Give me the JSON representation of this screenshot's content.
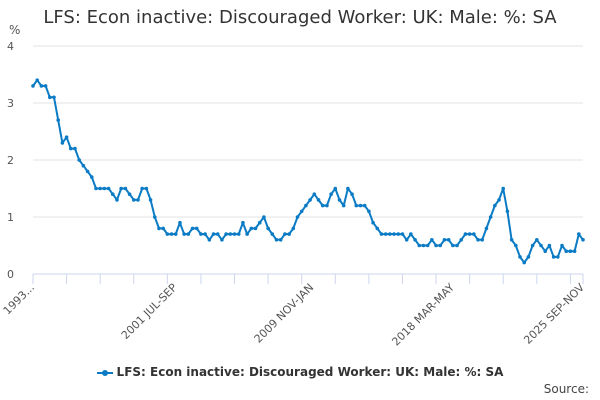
{
  "chart_data": {
    "type": "line",
    "title": "LFS: Econ inactive: Discouraged Worker: UK: Male: %: SA",
    "ylabel": "%",
    "xlabel": "",
    "ylim": [
      0,
      4
    ],
    "yticks": [
      0,
      1,
      2,
      3,
      4
    ],
    "grid": true,
    "x_start": "1993",
    "x_end": "2025 SEP-NOV",
    "x_step": "quarter (approx.)",
    "xtick_labels": [
      {
        "label": "1993...",
        "index": 0
      },
      {
        "label": "2001 JUL-SEP",
        "index": 34
      },
      {
        "label": "2009 NOV-JAN",
        "index": 66.5
      },
      {
        "label": "2018 MAR-MAY",
        "index": 100
      },
      {
        "label": "2025 SEP-NOV",
        "index": 131
      }
    ],
    "series": [
      {
        "name": "LFS: Econ inactive: Discouraged Worker: UK: Male: %: SA",
        "color": "#0a7bc4",
        "values": [
          3.3,
          3.4,
          3.3,
          3.3,
          3.1,
          3.1,
          2.7,
          2.3,
          2.4,
          2.2,
          2.2,
          2.0,
          1.9,
          1.8,
          1.7,
          1.5,
          1.5,
          1.5,
          1.5,
          1.4,
          1.3,
          1.5,
          1.5,
          1.4,
          1.3,
          1.3,
          1.5,
          1.5,
          1.3,
          1.0,
          0.8,
          0.8,
          0.7,
          0.7,
          0.7,
          0.9,
          0.7,
          0.7,
          0.8,
          0.8,
          0.7,
          0.7,
          0.6,
          0.7,
          0.7,
          0.6,
          0.7,
          0.7,
          0.7,
          0.7,
          0.9,
          0.7,
          0.8,
          0.8,
          0.9,
          1.0,
          0.8,
          0.7,
          0.6,
          0.6,
          0.7,
          0.7,
          0.8,
          1.0,
          1.1,
          1.2,
          1.3,
          1.4,
          1.3,
          1.2,
          1.2,
          1.4,
          1.5,
          1.3,
          1.2,
          1.5,
          1.4,
          1.2,
          1.2,
          1.2,
          1.1,
          0.9,
          0.8,
          0.7,
          0.7,
          0.7,
          0.7,
          0.7,
          0.7,
          0.6,
          0.7,
          0.6,
          0.5,
          0.5,
          0.5,
          0.6,
          0.5,
          0.5,
          0.6,
          0.6,
          0.5,
          0.5,
          0.6,
          0.7,
          0.7,
          0.7,
          0.6,
          0.6,
          0.8,
          1.0,
          1.2,
          1.3,
          1.5,
          1.1,
          0.6,
          0.5,
          0.3,
          0.2,
          0.3,
          0.5,
          0.6,
          0.5,
          0.4,
          0.5,
          0.3,
          0.3,
          0.5,
          0.4,
          0.4,
          0.4,
          0.7,
          0.6
        ]
      }
    ],
    "legend": "bottom-center",
    "source_label": "Source:"
  }
}
